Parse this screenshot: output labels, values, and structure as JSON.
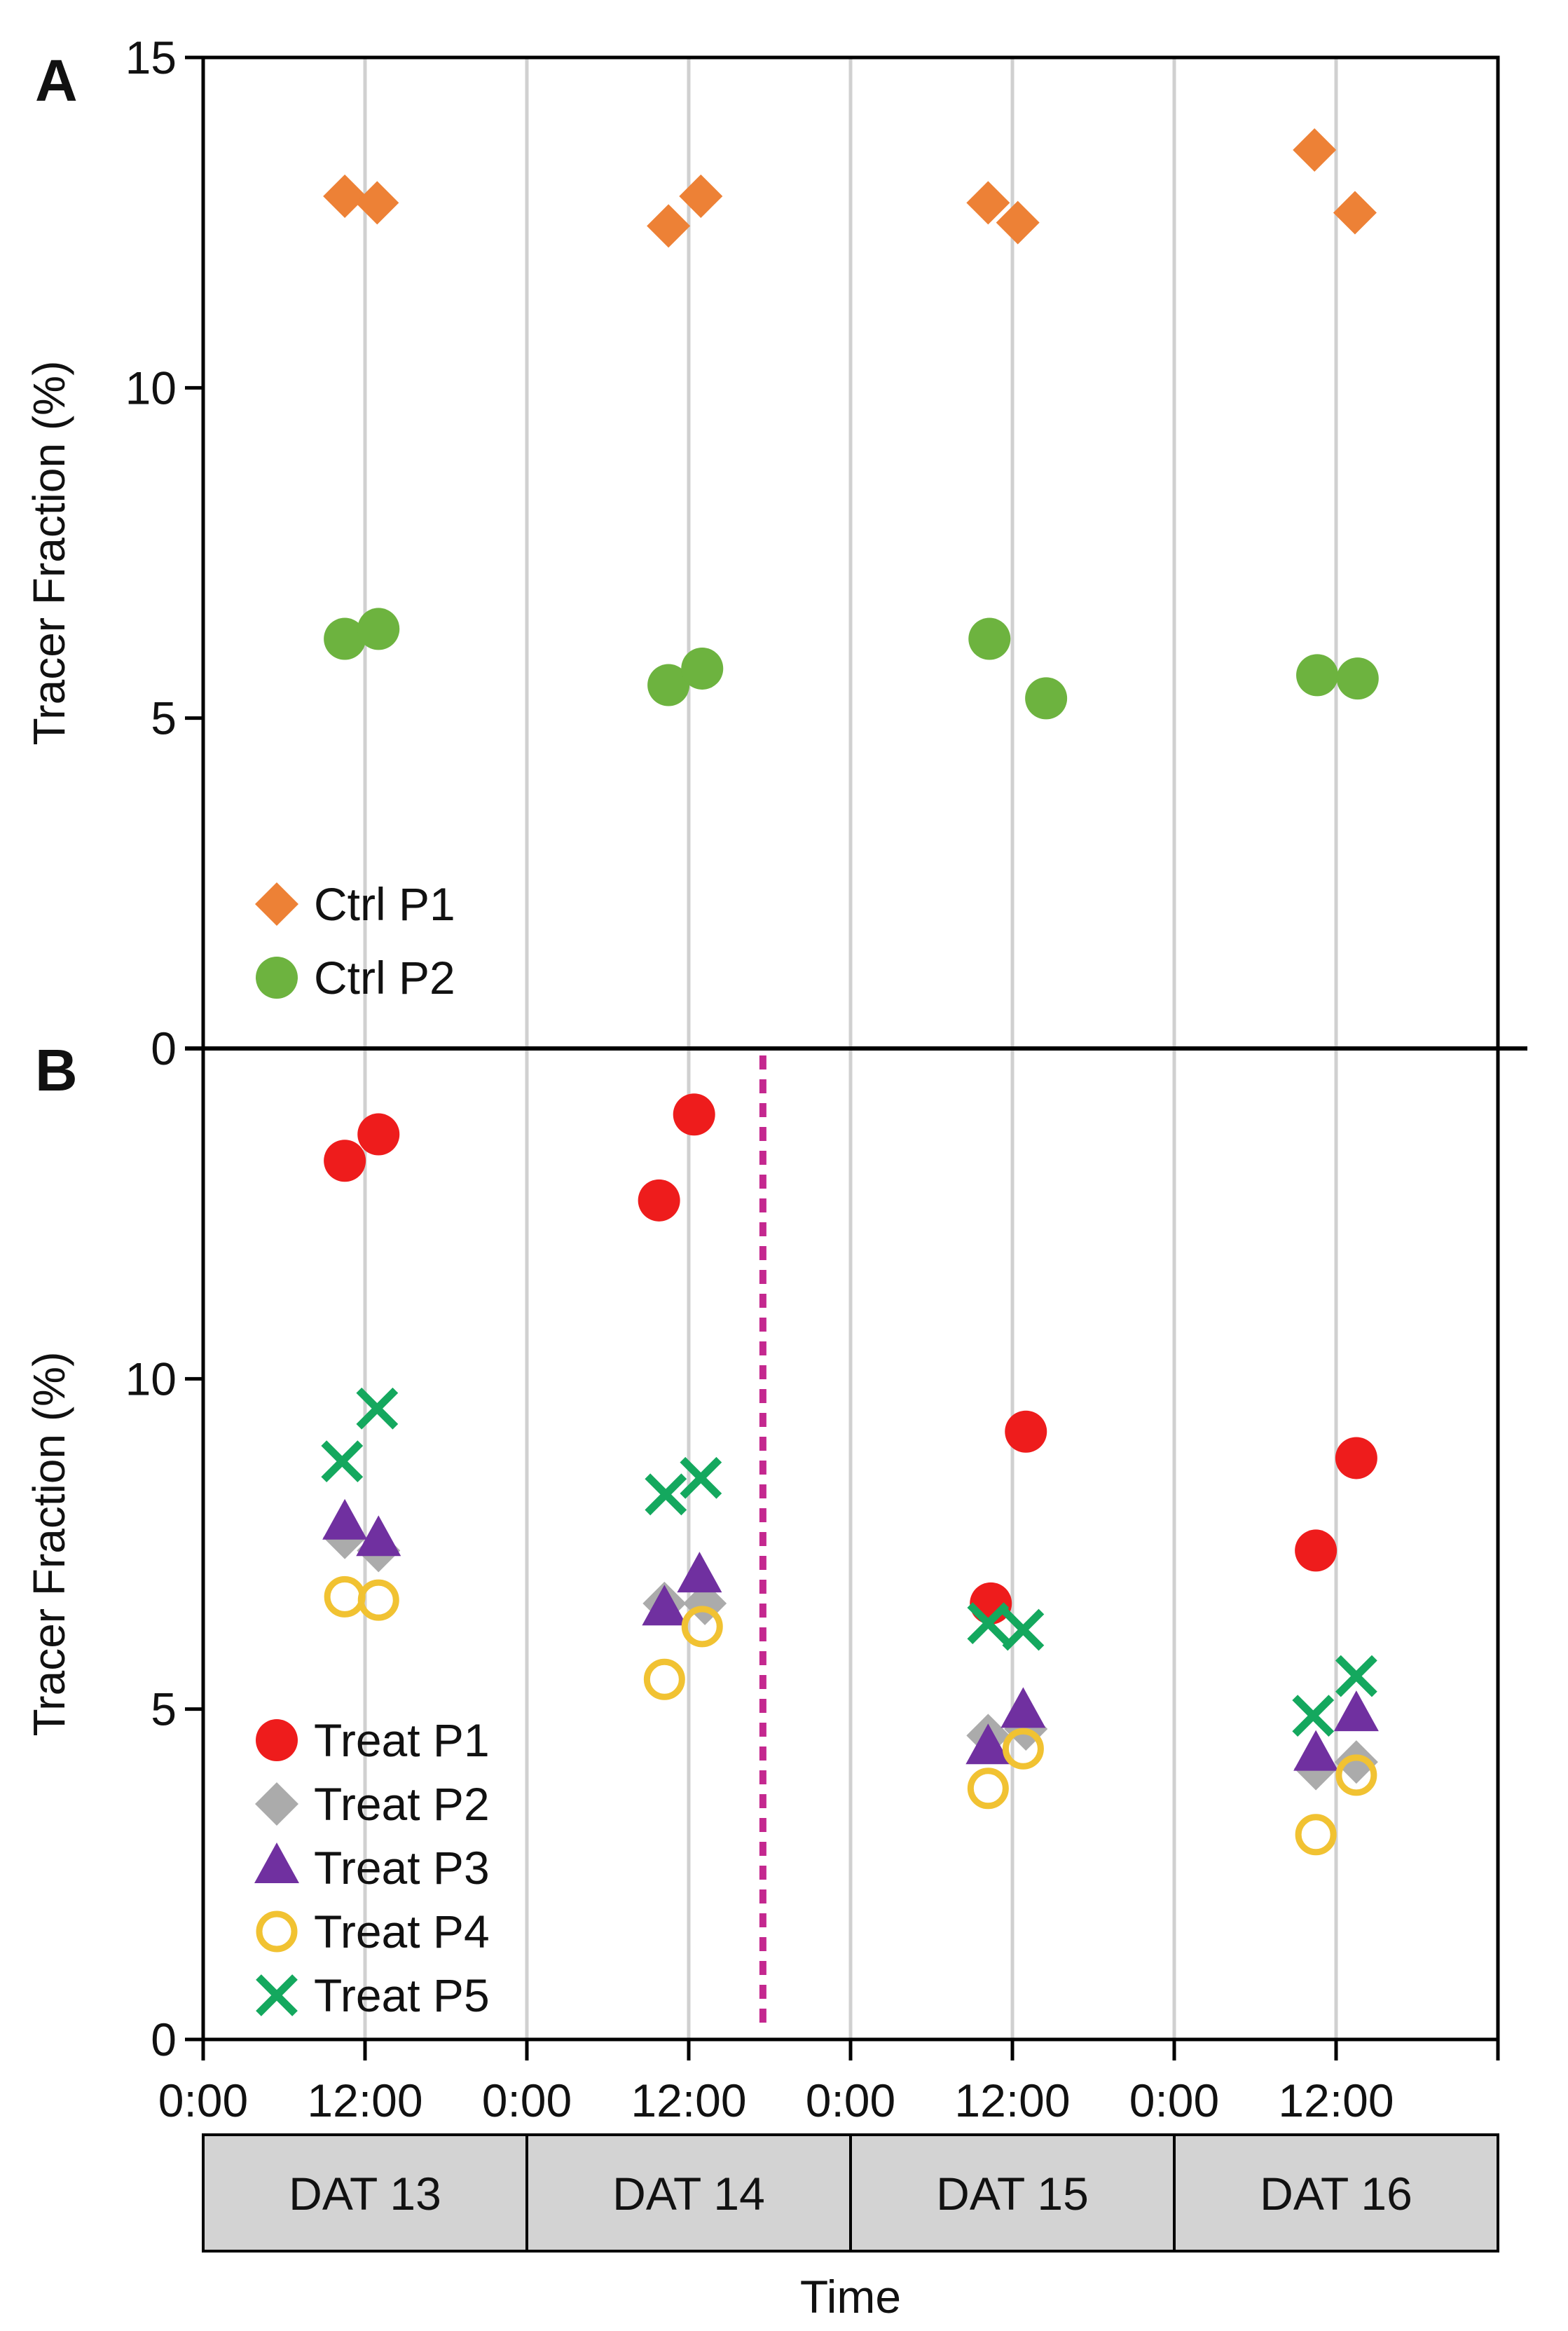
{
  "colors": {
    "orange": "#ED8136",
    "green": "#6DB33F",
    "red": "#EE1C1C",
    "gray": "#ABABAB",
    "purple": "#7030A0",
    "yellow": "#F1C232",
    "teal": "#14A85E",
    "magenta": "#C4288F",
    "grid": "#D0D0D0",
    "box_fill": "#D3D3D3"
  },
  "chart_data": [
    {
      "type": "scatter",
      "panel_label": "A",
      "ylabel": "Tracer Fraction (%)",
      "ylim": [
        0,
        15
      ],
      "yticks": [
        0,
        5,
        10,
        15
      ],
      "xlim_hours": [
        0,
        96
      ],
      "gridlines_hours": [
        0,
        12,
        24,
        36,
        48,
        60,
        72,
        84,
        96
      ],
      "legend_position": "bottom-left",
      "series": [
        {
          "name": "Ctrl P1",
          "marker": "diamond",
          "color": "#ED8136",
          "points": [
            [
              10.5,
              12.9
            ],
            [
              12.9,
              12.8
            ],
            [
              34.5,
              12.45
            ],
            [
              36.9,
              12.9
            ],
            [
              58.2,
              12.8
            ],
            [
              60.4,
              12.5
            ],
            [
              82.4,
              13.6
            ],
            [
              85.4,
              12.65
            ]
          ]
        },
        {
          "name": "Ctrl P2",
          "marker": "circle",
          "color": "#6DB33F",
          "points": [
            [
              10.5,
              6.2
            ],
            [
              13.0,
              6.35
            ],
            [
              34.5,
              5.5
            ],
            [
              37.0,
              5.75
            ],
            [
              58.3,
              6.2
            ],
            [
              62.5,
              5.3
            ],
            [
              82.6,
              5.65
            ],
            [
              85.6,
              5.6
            ]
          ]
        }
      ]
    },
    {
      "type": "scatter",
      "panel_label": "B",
      "ylabel": "Tracer Fraction (%)",
      "ylim": [
        0,
        15
      ],
      "yticks": [
        0,
        5,
        10
      ],
      "xlim_hours": [
        0,
        96
      ],
      "gridlines_hours": [
        0,
        12,
        24,
        36,
        48,
        60,
        72,
        84,
        96
      ],
      "event_line_hours": 41.5,
      "legend_position": "bottom-left",
      "series": [
        {
          "name": "Treat P1",
          "marker": "circle",
          "color": "#EE1C1C",
          "points": [
            [
              10.5,
              13.3
            ],
            [
              13.0,
              13.7
            ],
            [
              33.8,
              12.7
            ],
            [
              36.4,
              14.0
            ],
            [
              58.4,
              6.6
            ],
            [
              61.0,
              9.2
            ],
            [
              82.5,
              7.4
            ],
            [
              85.5,
              8.8
            ]
          ]
        },
        {
          "name": "Treat P2",
          "marker": "diamond",
          "color": "#ABABAB",
          "points": [
            [
              10.5,
              7.6
            ],
            [
              13.0,
              7.4
            ],
            [
              34.2,
              6.6
            ],
            [
              37.2,
              6.6
            ],
            [
              58.2,
              4.6
            ],
            [
              61.0,
              4.7
            ],
            [
              82.5,
              4.1
            ],
            [
              85.5,
              4.2
            ]
          ]
        },
        {
          "name": "Treat P3",
          "marker": "triangle",
          "color": "#7030A0",
          "points": [
            [
              10.5,
              7.8
            ],
            [
              13.0,
              7.55
            ],
            [
              34.2,
              6.5
            ],
            [
              36.8,
              7.0
            ],
            [
              58.2,
              4.4
            ],
            [
              60.8,
              4.95
            ],
            [
              82.5,
              4.3
            ],
            [
              85.5,
              4.9
            ]
          ]
        },
        {
          "name": "Treat P4",
          "marker": "open-circle",
          "color": "#F1C232",
          "points": [
            [
              10.5,
              6.7
            ],
            [
              13.0,
              6.65
            ],
            [
              34.2,
              5.45
            ],
            [
              37.0,
              6.25
            ],
            [
              58.2,
              3.8
            ],
            [
              60.8,
              4.4
            ],
            [
              82.5,
              3.1
            ],
            [
              85.5,
              4.0
            ]
          ]
        },
        {
          "name": "Treat P5",
          "marker": "x",
          "color": "#14A85E",
          "points": [
            [
              10.3,
              8.75
            ],
            [
              12.9,
              9.55
            ],
            [
              34.3,
              8.25
            ],
            [
              36.9,
              8.5
            ],
            [
              58.2,
              6.3
            ],
            [
              60.8,
              6.2
            ],
            [
              82.3,
              4.9
            ],
            [
              85.5,
              5.5
            ]
          ]
        }
      ]
    }
  ],
  "x_axis": {
    "tick_labels": [
      {
        "hour": 0,
        "text": "0:00"
      },
      {
        "hour": 12,
        "text": "12:00"
      },
      {
        "hour": 24,
        "text": "0:00"
      },
      {
        "hour": 36,
        "text": "12:00"
      },
      {
        "hour": 48,
        "text": "0:00"
      },
      {
        "hour": 60,
        "text": "12:00"
      },
      {
        "hour": 72,
        "text": "0:00"
      },
      {
        "hour": 84,
        "text": "12:00"
      }
    ],
    "day_labels": [
      "DAT 13",
      "DAT 14",
      "DAT 15",
      "DAT 16"
    ],
    "xlabel": "Time"
  }
}
